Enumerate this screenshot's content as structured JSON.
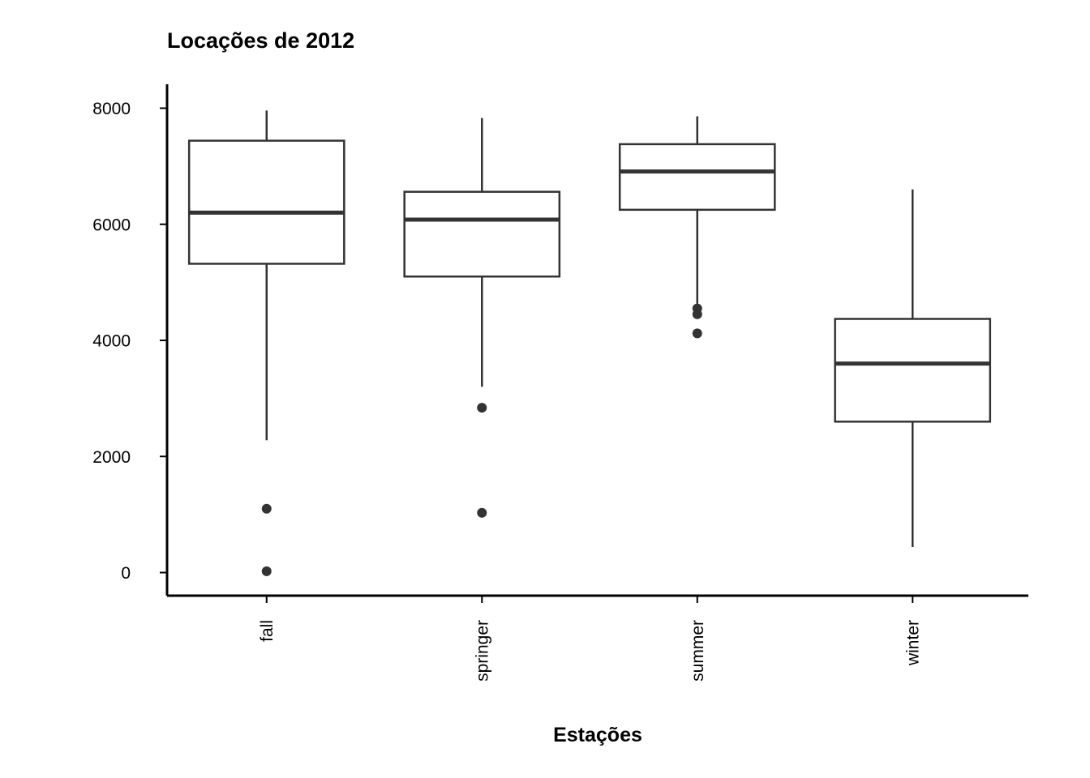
{
  "chart_data": {
    "type": "boxplot",
    "title": "Locações de 2012",
    "xlabel": "Estações",
    "ylabel": "",
    "ylim": [
      -400,
      8400
    ],
    "yticks": [
      0,
      2000,
      4000,
      6000,
      8000
    ],
    "ytick_labels": [
      "0",
      "2000",
      "4000",
      "6000",
      "8000"
    ],
    "categories": [
      "fall",
      "springer",
      "summer",
      "winter"
    ],
    "boxes": [
      {
        "category": "fall",
        "whisker_low": 2280,
        "q1": 5320,
        "median": 6200,
        "q3": 7440,
        "whisker_high": 7960,
        "outliers": [
          1100,
          22
        ]
      },
      {
        "category": "springer",
        "whisker_low": 3200,
        "q1": 5100,
        "median": 6080,
        "q3": 6560,
        "whisker_high": 7830,
        "outliers": [
          2840,
          1030
        ]
      },
      {
        "category": "summer",
        "whisker_low": 4630,
        "q1": 6250,
        "median": 6910,
        "q3": 7380,
        "whisker_high": 7860,
        "outliers": [
          4550,
          4450,
          4120
        ]
      },
      {
        "category": "winter",
        "whisker_low": 440,
        "q1": 2600,
        "median": 3600,
        "q3": 4370,
        "whisker_high": 6600,
        "outliers": []
      }
    ],
    "colors": {
      "box_line": "#333333",
      "axis": "#000000",
      "background": "#ffffff"
    },
    "grid": false,
    "legend": "none"
  }
}
